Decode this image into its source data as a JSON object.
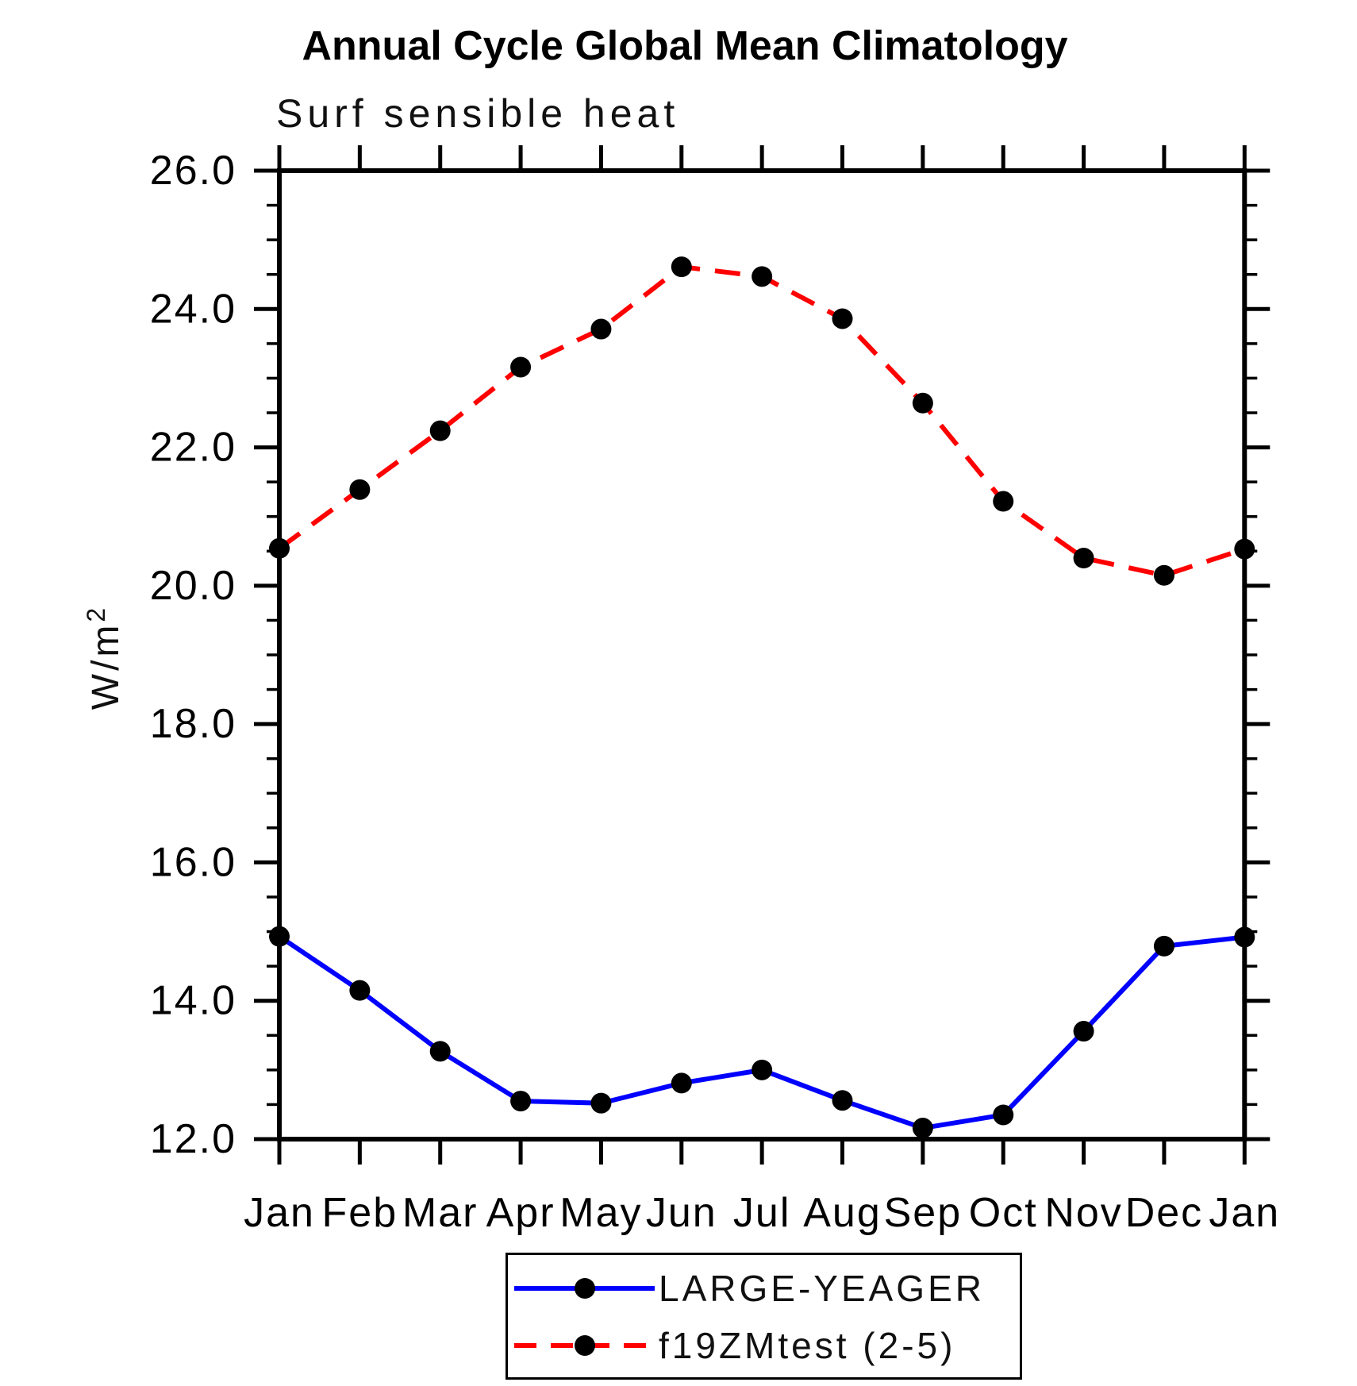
{
  "page": {
    "title": "Annual Cycle Global Mean Climatology",
    "subtitle": "Surf sensible heat"
  },
  "y_axis": {
    "label_base": "W/m",
    "label_sup": "2"
  },
  "legend": {
    "position": "bottom-center",
    "items": [
      {
        "label": "LARGE-YEAGER",
        "color": "#0000ff",
        "line_style": "solid",
        "marker": "circle",
        "marker_color": "#000000"
      },
      {
        "label": "f19ZMtest (2-5)",
        "color": "#ff0000",
        "line_style": "dashed",
        "marker": "circle",
        "marker_color": "#000000"
      }
    ]
  },
  "chart_data": {
    "type": "line",
    "title": "Annual Cycle Global Mean Climatology",
    "subtitle": "Surf sensible heat",
    "xlabel": "",
    "ylabel": "W/m2",
    "categories": [
      "Jan",
      "Feb",
      "Mar",
      "Apr",
      "May",
      "Jun",
      "Jul",
      "Aug",
      "Sep",
      "Oct",
      "Nov",
      "Dec",
      "Jan"
    ],
    "series": [
      {
        "name": "LARGE-YEAGER",
        "color": "#0000ff",
        "line_style": "solid",
        "marker": "circle",
        "values": [
          14.93,
          14.15,
          13.27,
          12.55,
          12.52,
          12.81,
          13.0,
          12.56,
          12.16,
          12.35,
          13.56,
          14.79,
          14.92
        ]
      },
      {
        "name": "f19ZMtest (2-5)",
        "color": "#ff0000",
        "line_style": "dashed",
        "marker": "circle",
        "values": [
          20.54,
          21.39,
          22.24,
          23.16,
          23.71,
          24.61,
          24.47,
          23.86,
          22.64,
          21.22,
          20.4,
          20.15,
          20.53
        ]
      }
    ],
    "ylim": [
      12.0,
      26.0
    ],
    "ytick_major_step": 2.0,
    "ytick_minor_step": 0.5,
    "ytick_labels": [
      "12.0",
      "14.0",
      "16.0",
      "18.0",
      "20.0",
      "22.0",
      "24.0",
      "26.0"
    ],
    "grid": false,
    "legend_position": "bottom-center",
    "marker_color": "#000000"
  }
}
